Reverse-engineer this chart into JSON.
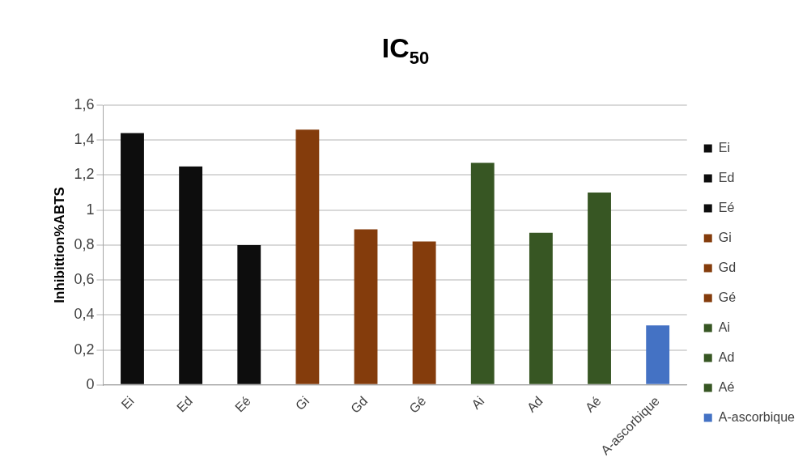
{
  "chart_data": {
    "type": "bar",
    "title": "IC$_{50}$",
    "ylabel": "Inhibittion%ABTS",
    "categories": [
      "Ei",
      "Ed",
      "Eé",
      "Gi",
      "Gd",
      "Gé",
      "Ai",
      "Ad",
      "Aé",
      "A-ascorbique"
    ],
    "series": [
      {
        "name": "Ei",
        "color": "#0d0d0d",
        "values": [
          1.44,
          null,
          null,
          null,
          null,
          null,
          null,
          null,
          null,
          null
        ]
      },
      {
        "name": "Ed",
        "color": "#0d0d0d",
        "values": [
          null,
          1.25,
          null,
          null,
          null,
          null,
          null,
          null,
          null,
          null
        ]
      },
      {
        "name": "Eé",
        "color": "#0d0d0d",
        "values": [
          null,
          null,
          0.8,
          null,
          null,
          null,
          null,
          null,
          null,
          null
        ]
      },
      {
        "name": "Gi",
        "color": "#843c0c",
        "values": [
          null,
          null,
          null,
          1.46,
          null,
          null,
          null,
          null,
          null,
          null
        ]
      },
      {
        "name": "Gd",
        "color": "#843c0c",
        "values": [
          null,
          null,
          null,
          null,
          0.89,
          null,
          null,
          null,
          null,
          null
        ]
      },
      {
        "name": "Gé",
        "color": "#843c0c",
        "values": [
          null,
          null,
          null,
          null,
          null,
          0.82,
          null,
          null,
          null,
          null
        ]
      },
      {
        "name": "Ai",
        "color": "#375623",
        "values": [
          null,
          null,
          null,
          null,
          null,
          null,
          1.27,
          null,
          null,
          null
        ]
      },
      {
        "name": "Ad",
        "color": "#375623",
        "values": [
          null,
          null,
          null,
          null,
          null,
          null,
          null,
          0.87,
          null,
          null
        ]
      },
      {
        "name": "Aé",
        "color": "#375623",
        "values": [
          null,
          null,
          null,
          null,
          null,
          null,
          null,
          null,
          1.1,
          null
        ]
      },
      {
        "name": "A-ascorbique",
        "color": "#4472c4",
        "values": [
          null,
          null,
          null,
          null,
          null,
          null,
          null,
          null,
          null,
          0.34
        ]
      }
    ],
    "ylim": [
      0,
      1.6
    ],
    "yticks": [
      {
        "value": 0,
        "label": "0"
      },
      {
        "value": 0.2,
        "label": "0,2"
      },
      {
        "value": 0.4,
        "label": "0,4"
      },
      {
        "value": 0.6,
        "label": "0,6"
      },
      {
        "value": 0.8,
        "label": "0,8"
      },
      {
        "value": 1,
        "label": "1"
      },
      {
        "value": 1.2,
        "label": "1,2"
      },
      {
        "value": 1.4,
        "label": "1,4"
      },
      {
        "value": 1.6,
        "label": "1,6"
      }
    ],
    "grid": "y",
    "legend": "right"
  }
}
